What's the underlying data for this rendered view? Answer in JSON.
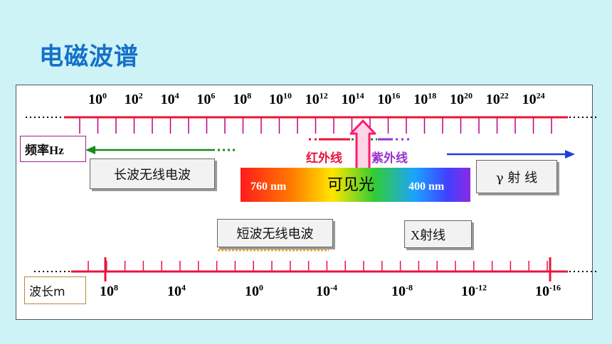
{
  "title": "电磁波谱",
  "freq_axis": {
    "label": "频率Hz",
    "exponents": [
      "0",
      "2",
      "4",
      "6",
      "8",
      "10",
      "12",
      "14",
      "16",
      "18",
      "20",
      "22",
      "24"
    ]
  },
  "wave_axis": {
    "label": "波长m",
    "exponents": [
      "8",
      "4",
      "0",
      "-4",
      "-8",
      "-12",
      "-16"
    ]
  },
  "tick_base": "10",
  "regions": {
    "long_wave": "长波无线电波",
    "short_wave": "短波无线电波",
    "infrared": "红外线",
    "ultraviolet": "紫外线",
    "visible": "可见光",
    "gamma": "γ 射 线",
    "xray": "X射线"
  },
  "spectrum": {
    "left_nm": "760 nm",
    "right_nm": "400 nm"
  },
  "colors": {
    "title": "#1570c8",
    "axis": "#e8143c",
    "tick": "#c0007f",
    "arrow_long": "#1a8a1a",
    "arrow_gamma": "#1d3fd6",
    "infrared": "#e8143c",
    "ultraviolet": "#9932cc",
    "visible_arrow": "#ff1a6e",
    "short_wave_underline": "#f5a623"
  }
}
